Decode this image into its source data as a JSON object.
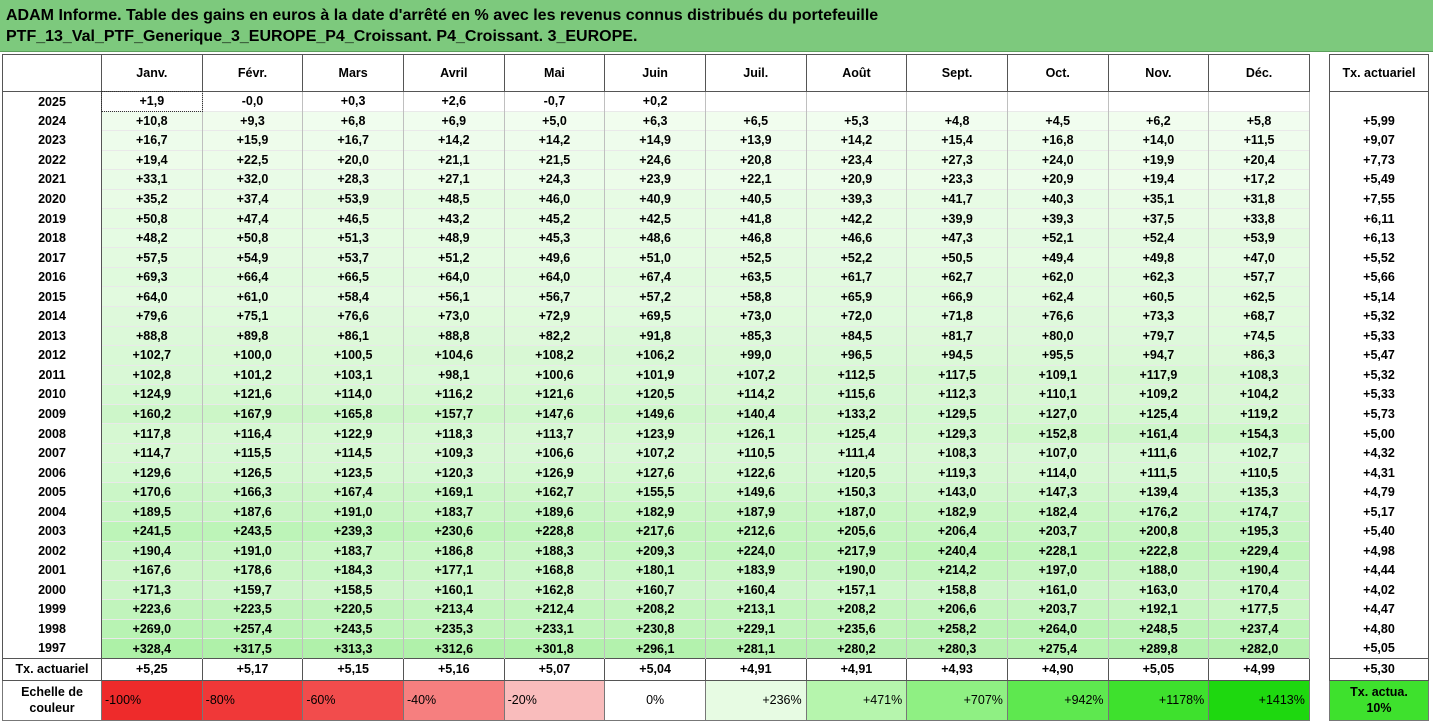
{
  "title_line1": "ADAM Informe. Table des gains en euros à la date d'arrêté en % avec les revenus connus distribués du portefeuille",
  "title_line2": "PTF_13_Val_PTF_Generique_3_EUROPE_P4_Croissant. P4_Croissant. 3_EUROPE.",
  "months": [
    "Janv.",
    "Févr.",
    "Mars",
    "Avril",
    "Mai",
    "Juin",
    "Juil.",
    "Août",
    "Sept.",
    "Oct.",
    "Nov.",
    "Déc."
  ],
  "side_header": "Tx. actuariel",
  "rows": [
    {
      "year": "2025",
      "values": [
        "+1,9",
        "-0,0",
        "+0,3",
        "+2,6",
        "-0,7",
        "+0,2",
        "",
        "",
        "",
        "",
        "",
        ""
      ],
      "tx": ""
    },
    {
      "year": "2024",
      "values": [
        "+10,8",
        "+9,3",
        "+6,8",
        "+6,9",
        "+5,0",
        "+6,3",
        "+6,5",
        "+5,3",
        "+4,8",
        "+4,5",
        "+6,2",
        "+5,8"
      ],
      "tx": "+5,99"
    },
    {
      "year": "2023",
      "values": [
        "+16,7",
        "+15,9",
        "+16,7",
        "+14,2",
        "+14,2",
        "+14,9",
        "+13,9",
        "+14,2",
        "+15,4",
        "+16,8",
        "+14,0",
        "+11,5"
      ],
      "tx": "+9,07"
    },
    {
      "year": "2022",
      "values": [
        "+19,4",
        "+22,5",
        "+20,0",
        "+21,1",
        "+21,5",
        "+24,6",
        "+20,8",
        "+23,4",
        "+27,3",
        "+24,0",
        "+19,9",
        "+20,4"
      ],
      "tx": "+7,73"
    },
    {
      "year": "2021",
      "values": [
        "+33,1",
        "+32,0",
        "+28,3",
        "+27,1",
        "+24,3",
        "+23,9",
        "+22,1",
        "+20,9",
        "+23,3",
        "+20,9",
        "+19,4",
        "+17,2"
      ],
      "tx": "+5,49"
    },
    {
      "year": "2020",
      "values": [
        "+35,2",
        "+37,4",
        "+53,9",
        "+48,5",
        "+46,0",
        "+40,9",
        "+40,5",
        "+39,3",
        "+41,7",
        "+40,3",
        "+35,1",
        "+31,8"
      ],
      "tx": "+7,55"
    },
    {
      "year": "2019",
      "values": [
        "+50,8",
        "+47,4",
        "+46,5",
        "+43,2",
        "+45,2",
        "+42,5",
        "+41,8",
        "+42,2",
        "+39,9",
        "+39,3",
        "+37,5",
        "+33,8"
      ],
      "tx": "+6,11"
    },
    {
      "year": "2018",
      "values": [
        "+48,2",
        "+50,8",
        "+51,3",
        "+48,9",
        "+45,3",
        "+48,6",
        "+46,8",
        "+46,6",
        "+47,3",
        "+52,1",
        "+52,4",
        "+53,9"
      ],
      "tx": "+6,13"
    },
    {
      "year": "2017",
      "values": [
        "+57,5",
        "+54,9",
        "+53,7",
        "+51,2",
        "+49,6",
        "+51,0",
        "+52,5",
        "+52,2",
        "+50,5",
        "+49,4",
        "+49,8",
        "+47,0"
      ],
      "tx": "+5,52"
    },
    {
      "year": "2016",
      "values": [
        "+69,3",
        "+66,4",
        "+66,5",
        "+64,0",
        "+64,0",
        "+67,4",
        "+63,5",
        "+61,7",
        "+62,7",
        "+62,0",
        "+62,3",
        "+57,7"
      ],
      "tx": "+5,66"
    },
    {
      "year": "2015",
      "values": [
        "+64,0",
        "+61,0",
        "+58,4",
        "+56,1",
        "+56,7",
        "+57,2",
        "+58,8",
        "+65,9",
        "+66,9",
        "+62,4",
        "+60,5",
        "+62,5"
      ],
      "tx": "+5,14"
    },
    {
      "year": "2014",
      "values": [
        "+79,6",
        "+75,1",
        "+76,6",
        "+73,0",
        "+72,9",
        "+69,5",
        "+73,0",
        "+72,0",
        "+71,8",
        "+76,6",
        "+73,3",
        "+68,7"
      ],
      "tx": "+5,32"
    },
    {
      "year": "2013",
      "values": [
        "+88,8",
        "+89,8",
        "+86,1",
        "+88,8",
        "+82,2",
        "+91,8",
        "+85,3",
        "+84,5",
        "+81,7",
        "+80,0",
        "+79,7",
        "+74,5"
      ],
      "tx": "+5,33"
    },
    {
      "year": "2012",
      "values": [
        "+102,7",
        "+100,0",
        "+100,5",
        "+104,6",
        "+108,2",
        "+106,2",
        "+99,0",
        "+96,5",
        "+94,5",
        "+95,5",
        "+94,7",
        "+86,3"
      ],
      "tx": "+5,47"
    },
    {
      "year": "2011",
      "values": [
        "+102,8",
        "+101,2",
        "+103,1",
        "+98,1",
        "+100,6",
        "+101,9",
        "+107,2",
        "+112,5",
        "+117,5",
        "+109,1",
        "+117,9",
        "+108,3"
      ],
      "tx": "+5,32"
    },
    {
      "year": "2010",
      "values": [
        "+124,9",
        "+121,6",
        "+114,0",
        "+116,2",
        "+121,6",
        "+120,5",
        "+114,2",
        "+115,6",
        "+112,3",
        "+110,1",
        "+109,2",
        "+104,2"
      ],
      "tx": "+5,33"
    },
    {
      "year": "2009",
      "values": [
        "+160,2",
        "+167,9",
        "+165,8",
        "+157,7",
        "+147,6",
        "+149,6",
        "+140,4",
        "+133,2",
        "+129,5",
        "+127,0",
        "+125,4",
        "+119,2"
      ],
      "tx": "+5,73"
    },
    {
      "year": "2008",
      "values": [
        "+117,8",
        "+116,4",
        "+122,9",
        "+118,3",
        "+113,7",
        "+123,9",
        "+126,1",
        "+125,4",
        "+129,3",
        "+152,8",
        "+161,4",
        "+154,3"
      ],
      "tx": "+5,00"
    },
    {
      "year": "2007",
      "values": [
        "+114,7",
        "+115,5",
        "+114,5",
        "+109,3",
        "+106,6",
        "+107,2",
        "+110,5",
        "+111,4",
        "+108,3",
        "+107,0",
        "+111,6",
        "+102,7"
      ],
      "tx": "+4,32"
    },
    {
      "year": "2006",
      "values": [
        "+129,6",
        "+126,5",
        "+123,5",
        "+120,3",
        "+126,9",
        "+127,6",
        "+122,6",
        "+120,5",
        "+119,3",
        "+114,0",
        "+111,5",
        "+110,5"
      ],
      "tx": "+4,31"
    },
    {
      "year": "2005",
      "values": [
        "+170,6",
        "+166,3",
        "+167,4",
        "+169,1",
        "+162,7",
        "+155,5",
        "+149,6",
        "+150,3",
        "+143,0",
        "+147,3",
        "+139,4",
        "+135,3"
      ],
      "tx": "+4,79"
    },
    {
      "year": "2004",
      "values": [
        "+189,5",
        "+187,6",
        "+191,0",
        "+183,7",
        "+189,6",
        "+182,9",
        "+187,9",
        "+187,0",
        "+182,9",
        "+182,4",
        "+176,2",
        "+174,7"
      ],
      "tx": "+5,17"
    },
    {
      "year": "2003",
      "values": [
        "+241,5",
        "+243,5",
        "+239,3",
        "+230,6",
        "+228,8",
        "+217,6",
        "+212,6",
        "+205,6",
        "+206,4",
        "+203,7",
        "+200,8",
        "+195,3"
      ],
      "tx": "+5,40"
    },
    {
      "year": "2002",
      "values": [
        "+190,4",
        "+191,0",
        "+183,7",
        "+186,8",
        "+188,3",
        "+209,3",
        "+224,0",
        "+217,9",
        "+240,4",
        "+228,1",
        "+222,8",
        "+229,4"
      ],
      "tx": "+4,98"
    },
    {
      "year": "2001",
      "values": [
        "+167,6",
        "+178,6",
        "+184,3",
        "+177,1",
        "+168,8",
        "+180,1",
        "+183,9",
        "+190,0",
        "+214,2",
        "+197,0",
        "+188,0",
        "+190,4"
      ],
      "tx": "+4,44"
    },
    {
      "year": "2000",
      "values": [
        "+171,3",
        "+159,7",
        "+158,5",
        "+160,1",
        "+162,8",
        "+160,7",
        "+160,4",
        "+157,1",
        "+158,8",
        "+161,0",
        "+163,0",
        "+170,4"
      ],
      "tx": "+4,02"
    },
    {
      "year": "1999",
      "values": [
        "+223,6",
        "+223,5",
        "+220,5",
        "+213,4",
        "+212,4",
        "+208,2",
        "+213,1",
        "+208,2",
        "+206,6",
        "+203,7",
        "+192,1",
        "+177,5"
      ],
      "tx": "+4,47"
    },
    {
      "year": "1998",
      "values": [
        "+269,0",
        "+257,4",
        "+243,5",
        "+235,3",
        "+233,1",
        "+230,8",
        "+229,1",
        "+235,6",
        "+258,2",
        "+264,0",
        "+248,5",
        "+237,4"
      ],
      "tx": "+4,80"
    },
    {
      "year": "1997",
      "values": [
        "+328,4",
        "+317,5",
        "+313,3",
        "+312,6",
        "+301,8",
        "+296,1",
        "+281,1",
        "+280,2",
        "+280,3",
        "+275,4",
        "+289,8",
        "+282,0"
      ],
      "tx": "+5,05"
    }
  ],
  "tx_row": {
    "label": "Tx. actuariel",
    "values": [
      "+5,25",
      "+5,17",
      "+5,15",
      "+5,16",
      "+5,07",
      "+5,04",
      "+4,91",
      "+4,91",
      "+4,93",
      "+4,90",
      "+5,05",
      "+4,99"
    ],
    "total": "+5,30"
  },
  "scale": {
    "label": "Echelle de couleur",
    "items": [
      {
        "text": "-100%",
        "color": "#ee2b2b",
        "align": "left"
      },
      {
        "text": "-80%",
        "color": "#f03838",
        "align": "left"
      },
      {
        "text": "-60%",
        "color": "#f24c4c",
        "align": "left"
      },
      {
        "text": "-40%",
        "color": "#f67f7f",
        "align": "left"
      },
      {
        "text": "-20%",
        "color": "#f9bcbc",
        "align": "left"
      },
      {
        "text": "0%",
        "color": "#ffffff",
        "align": "center"
      },
      {
        "text": "+236%",
        "color": "#e7fbe3",
        "align": "right"
      },
      {
        "text": "+471%",
        "color": "#b6f5ad",
        "align": "right"
      },
      {
        "text": "+707%",
        "color": "#8ff083",
        "align": "right"
      },
      {
        "text": "+942%",
        "color": "#5ee84f",
        "align": "right"
      },
      {
        "text": "+1178%",
        "color": "#3ee12d",
        "align": "right"
      },
      {
        "text": "+1413%",
        "color": "#1ed80f",
        "align": "right"
      }
    ],
    "side_label": "Tx. actua. 10%",
    "side_color": "#3ee12d"
  }
}
